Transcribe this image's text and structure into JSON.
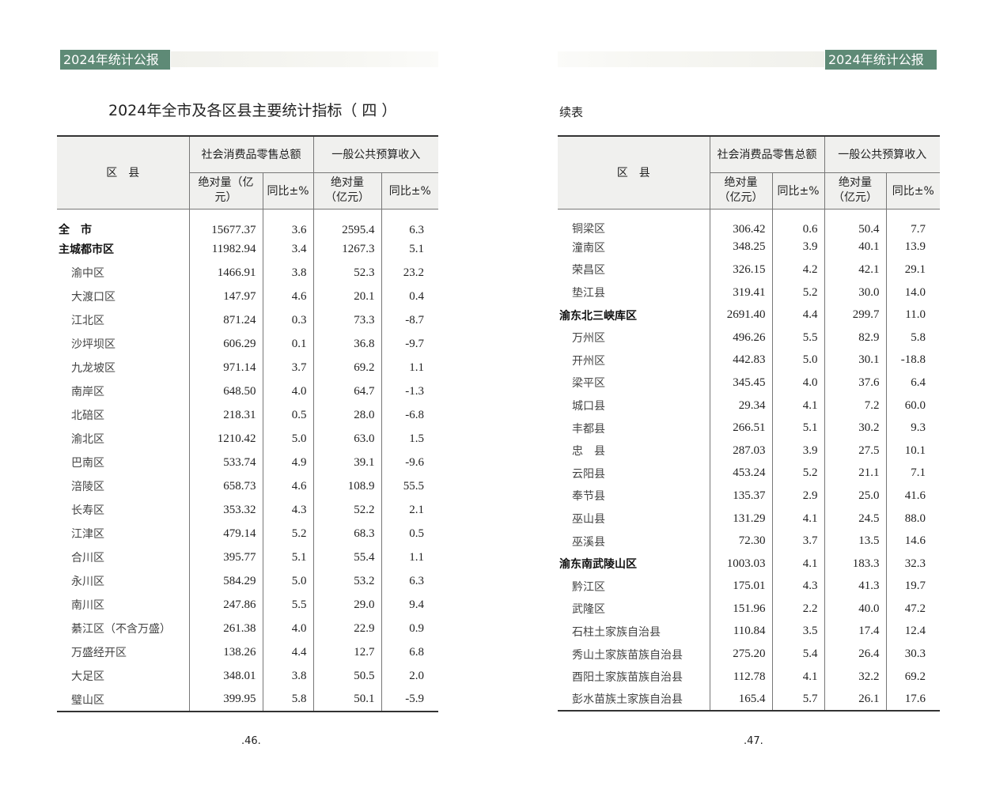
{
  "header_label": "2024年统计公报",
  "colors": {
    "banner": "#5e8a76",
    "header_bg": "#f0f0ee"
  },
  "left": {
    "title": "2024年全市及各区县主要统计指标（ 四 ）",
    "page_number": ".46.",
    "rows": [
      {
        "name": "全　市",
        "level": 0,
        "v": [
          "15677.37",
          "3.6",
          "2595.4",
          "6.3"
        ]
      },
      {
        "name": "主城都市区",
        "level": 0,
        "v": [
          "11982.94",
          "3.4",
          "1267.3",
          "5.1"
        ]
      },
      {
        "name": "渝中区",
        "level": 1,
        "v": [
          "1466.91",
          "3.8",
          "52.3",
          "23.2"
        ]
      },
      {
        "name": "大渡口区",
        "level": 1,
        "v": [
          "147.97",
          "4.6",
          "20.1",
          "0.4"
        ]
      },
      {
        "name": "江北区",
        "level": 1,
        "v": [
          "871.24",
          "0.3",
          "73.3",
          "-8.7"
        ]
      },
      {
        "name": "沙坪坝区",
        "level": 1,
        "v": [
          "606.29",
          "0.1",
          "36.8",
          "-9.7"
        ]
      },
      {
        "name": "九龙坡区",
        "level": 1,
        "v": [
          "971.14",
          "3.7",
          "69.2",
          "1.1"
        ]
      },
      {
        "name": "南岸区",
        "level": 1,
        "v": [
          "648.50",
          "4.0",
          "64.7",
          "-1.3"
        ]
      },
      {
        "name": "北碚区",
        "level": 1,
        "v": [
          "218.31",
          "0.5",
          "28.0",
          "-6.8"
        ]
      },
      {
        "name": "渝北区",
        "level": 1,
        "v": [
          "1210.42",
          "5.0",
          "63.0",
          "1.5"
        ]
      },
      {
        "name": "巴南区",
        "level": 1,
        "v": [
          "533.74",
          "4.9",
          "39.1",
          "-9.6"
        ]
      },
      {
        "name": "涪陵区",
        "level": 1,
        "v": [
          "658.73",
          "4.6",
          "108.9",
          "55.5"
        ]
      },
      {
        "name": "长寿区",
        "level": 1,
        "v": [
          "353.32",
          "4.3",
          "52.2",
          "2.1"
        ]
      },
      {
        "name": "江津区",
        "level": 1,
        "v": [
          "479.14",
          "5.2",
          "68.3",
          "0.5"
        ]
      },
      {
        "name": "合川区",
        "level": 1,
        "v": [
          "395.77",
          "5.1",
          "55.4",
          "1.1"
        ]
      },
      {
        "name": "永川区",
        "level": 1,
        "v": [
          "584.29",
          "5.0",
          "53.2",
          "6.3"
        ]
      },
      {
        "name": "南川区",
        "level": 1,
        "v": [
          "247.86",
          "5.5",
          "29.0",
          "9.4"
        ]
      },
      {
        "name": "綦江区（不含万盛）",
        "level": 1,
        "v": [
          "261.38",
          "4.0",
          "22.9",
          "0.9"
        ]
      },
      {
        "name": "万盛经开区",
        "level": 1,
        "v": [
          "138.26",
          "4.4",
          "12.7",
          "6.8"
        ]
      },
      {
        "name": "大足区",
        "level": 1,
        "v": [
          "348.01",
          "3.8",
          "50.5",
          "2.0"
        ]
      },
      {
        "name": "璧山区",
        "level": 1,
        "v": [
          "399.95",
          "5.8",
          "50.1",
          "-5.9"
        ]
      }
    ]
  },
  "right": {
    "subtitle": "续表",
    "page_number": ".47.",
    "rows": [
      {
        "name": "铜梁区",
        "level": 1,
        "v": [
          "306.42",
          "0.6",
          "50.4",
          "7.7"
        ]
      },
      {
        "name": "潼南区",
        "level": 1,
        "v": [
          "348.25",
          "3.9",
          "40.1",
          "13.9"
        ]
      },
      {
        "name": "荣昌区",
        "level": 1,
        "v": [
          "326.15",
          "4.2",
          "42.1",
          "29.1"
        ]
      },
      {
        "name": "垫江县",
        "level": 1,
        "v": [
          "319.41",
          "5.2",
          "30.0",
          "14.0"
        ]
      },
      {
        "name": "渝东北三峡库区",
        "level": 0,
        "v": [
          "2691.40",
          "4.4",
          "299.7",
          "11.0"
        ]
      },
      {
        "name": "万州区",
        "level": 1,
        "v": [
          "496.26",
          "5.5",
          "82.9",
          "5.8"
        ]
      },
      {
        "name": "开州区",
        "level": 1,
        "v": [
          "442.83",
          "5.0",
          "30.1",
          "-18.8"
        ]
      },
      {
        "name": "梁平区",
        "level": 1,
        "v": [
          "345.45",
          "4.0",
          "37.6",
          "6.4"
        ]
      },
      {
        "name": "城口县",
        "level": 1,
        "v": [
          "29.34",
          "4.1",
          "7.2",
          "60.0"
        ]
      },
      {
        "name": "丰都县",
        "level": 1,
        "v": [
          "266.51",
          "5.1",
          "30.2",
          "9.3"
        ]
      },
      {
        "name": "忠　县",
        "level": 1,
        "v": [
          "287.03",
          "3.9",
          "27.5",
          "10.1"
        ]
      },
      {
        "name": "云阳县",
        "level": 1,
        "v": [
          "453.24",
          "5.2",
          "21.1",
          "7.1"
        ]
      },
      {
        "name": "奉节县",
        "level": 1,
        "v": [
          "135.37",
          "2.9",
          "25.0",
          "41.6"
        ]
      },
      {
        "name": "巫山县",
        "level": 1,
        "v": [
          "131.29",
          "4.1",
          "24.5",
          "88.0"
        ]
      },
      {
        "name": "巫溪县",
        "level": 1,
        "v": [
          "72.30",
          "3.7",
          "13.5",
          "14.6"
        ]
      },
      {
        "name": "渝东南武陵山区",
        "level": 0,
        "v": [
          "1003.03",
          "4.1",
          "183.3",
          "32.3"
        ]
      },
      {
        "name": "黔江区",
        "level": 1,
        "v": [
          "175.01",
          "4.3",
          "41.3",
          "19.7"
        ]
      },
      {
        "name": "武隆区",
        "level": 1,
        "v": [
          "151.96",
          "2.2",
          "40.0",
          "47.2"
        ]
      },
      {
        "name": "石柱土家族自治县",
        "level": 1,
        "v": [
          "110.84",
          "3.5",
          "17.4",
          "12.4"
        ]
      },
      {
        "name": "秀山土家族苗族自治县",
        "level": 1,
        "v": [
          "275.20",
          "5.4",
          "26.4",
          "30.3"
        ]
      },
      {
        "name": "酉阳土家族苗族自治县",
        "level": 1,
        "v": [
          "112.78",
          "4.1",
          "32.2",
          "69.2"
        ]
      },
      {
        "name": "彭水苗族土家族自治县",
        "level": 1,
        "v": [
          "165.4",
          "5.7",
          "26.1",
          "17.6"
        ]
      }
    ]
  },
  "table_header": {
    "district": "区　县",
    "group1": "社会消费品零售总额",
    "group2": "一般公共预算收入",
    "abs": "绝对量（亿元）",
    "yoy": "同比±%"
  }
}
